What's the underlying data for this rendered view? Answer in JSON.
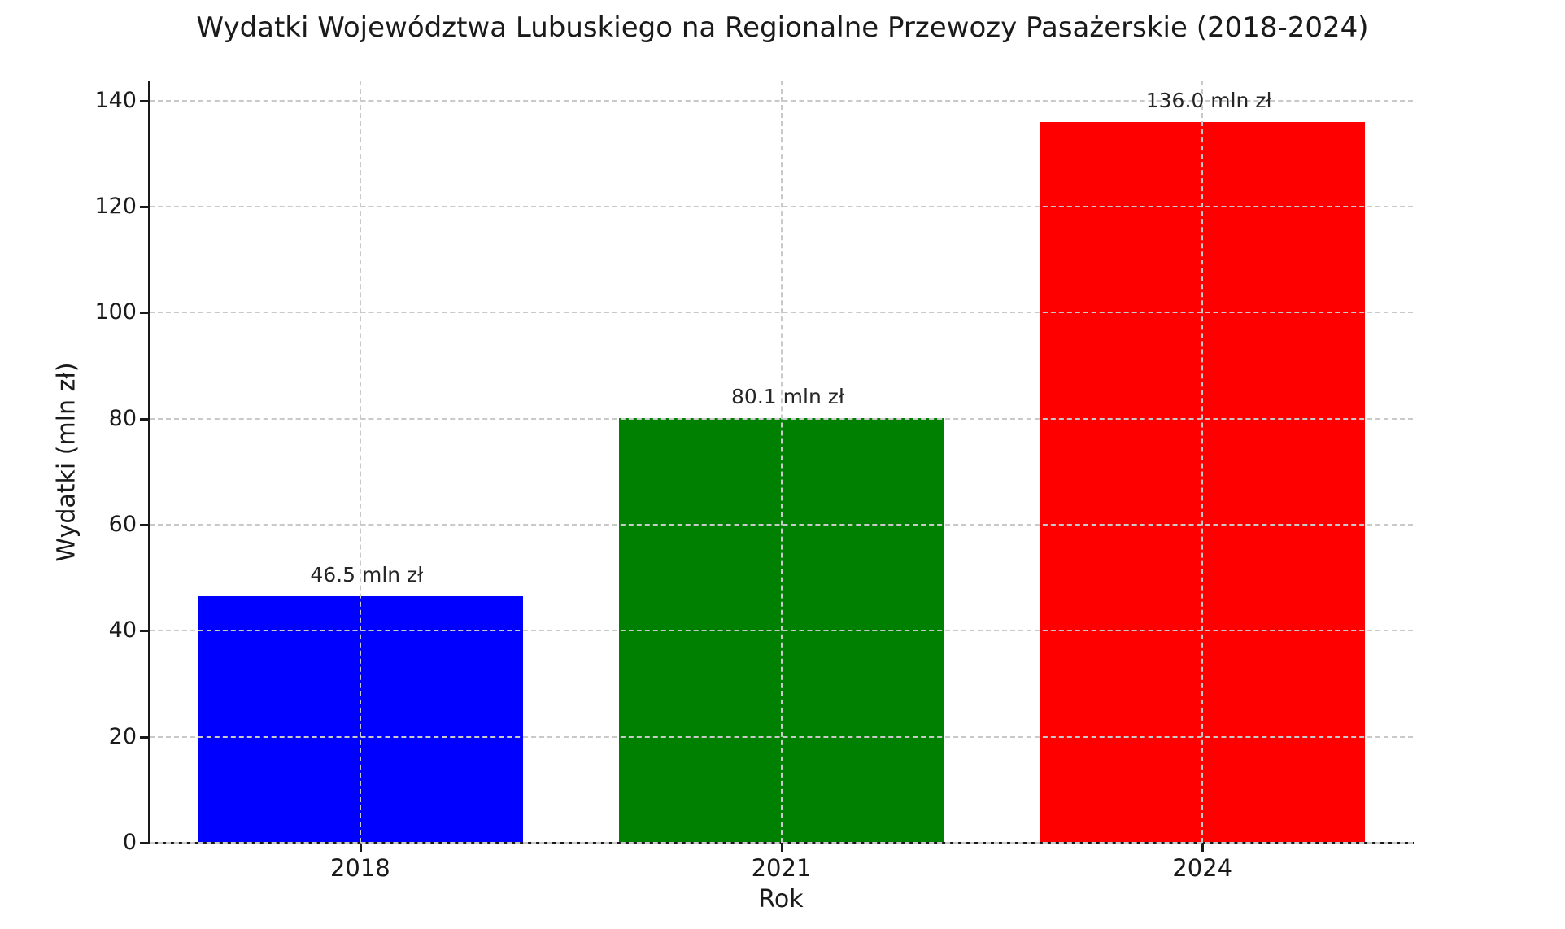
{
  "chart_data": {
    "type": "bar",
    "title": "Wydatki Województwa Lubuskiego na Regionalne Przewozy Pasażerskie (2018-2024)",
    "xlabel": "Rok",
    "ylabel": "Wydatki (mln zł)",
    "categories": [
      "2018",
      "2021",
      "2024"
    ],
    "values": [
      46.5,
      80.1,
      136.0
    ],
    "bar_labels": [
      "46.5 mln zł",
      "80.1 mln zł",
      "136.0 mln zł"
    ],
    "bar_colors": [
      "#0000ff",
      "#008000",
      "#ff0000"
    ],
    "ytick_values": [
      0,
      20,
      40,
      60,
      80,
      100,
      120,
      140
    ],
    "ylim": [
      0,
      143.8
    ],
    "grid": {
      "visible": true,
      "axis": "both",
      "style": "dashed",
      "above_bars": true
    },
    "legend": "none",
    "spines": {
      "top": false,
      "right": false,
      "left": true,
      "bottom": true
    }
  },
  "colors": {
    "text": "#1a1a1a",
    "value_label_text": "#262626",
    "grid": "#c9c9c9",
    "axis": "#1a1a1a",
    "background": "#ffffff"
  }
}
